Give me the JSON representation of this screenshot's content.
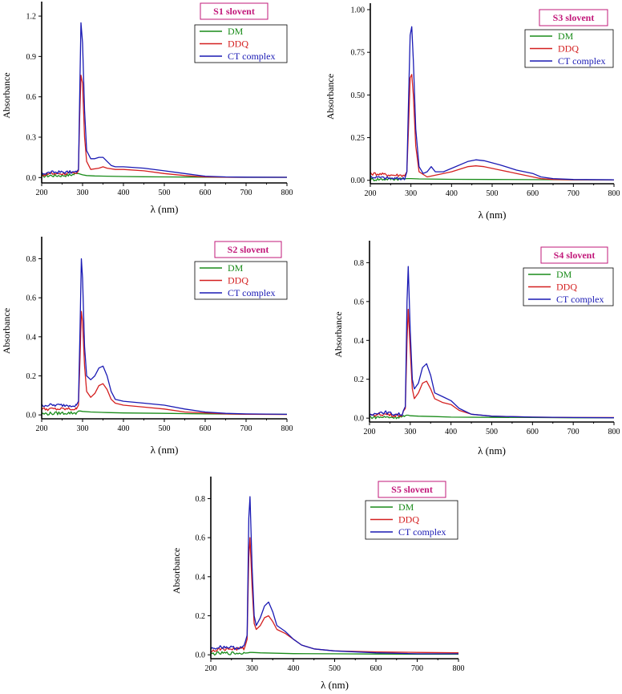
{
  "colors": {
    "DM": "#1a8c1a",
    "DDQ": "#d42020",
    "CT complex": "#1a1ab4",
    "title": "#c2187a"
  },
  "chart_data": [
    {
      "type": "line",
      "title": "S1 slovent",
      "xlabel": "λ (nm)",
      "ylabel": "Absorbance",
      "xlim": [
        200,
        800
      ],
      "ylim": [
        -0.04,
        1.26
      ],
      "xticks": [
        200,
        300,
        400,
        500,
        600,
        700,
        800
      ],
      "xtick_labels": [
        "200",
        "300",
        "400",
        "500",
        "600",
        "700",
        "800"
      ],
      "yticks": [
        0,
        0.3,
        0.6,
        0.9,
        1.2
      ],
      "ytick_labels": [
        "0.0",
        "0.3",
        "0.6",
        "0.9",
        "1.2"
      ],
      "legend": [
        "DM",
        "DDQ",
        "CT complex"
      ],
      "series": [
        {
          "name": "DM",
          "x": [
            200,
            220,
            250,
            270,
            280,
            290,
            295,
            300,
            310,
            330,
            360,
            400,
            450,
            500,
            600,
            700,
            800
          ],
          "y": [
            0.01,
            0.015,
            0.015,
            0.02,
            0.025,
            0.03,
            0.025,
            0.02,
            0.015,
            0.012,
            0.01,
            0.008,
            0.006,
            0.005,
            0.003,
            0.002,
            0.002
          ]
        },
        {
          "name": "DDQ",
          "x": [
            200,
            230,
            260,
            285,
            290,
            293,
            296,
            300,
            305,
            310,
            320,
            340,
            350,
            360,
            380,
            400,
            450,
            500,
            550,
            600,
            650,
            700,
            800
          ],
          "y": [
            0.02,
            0.03,
            0.03,
            0.03,
            0.05,
            0.45,
            0.76,
            0.7,
            0.3,
            0.12,
            0.06,
            0.07,
            0.08,
            0.07,
            0.06,
            0.06,
            0.05,
            0.03,
            0.015,
            0.005,
            0.003,
            0.002,
            0.002
          ]
        },
        {
          "name": "CT complex",
          "x": [
            200,
            230,
            260,
            285,
            290,
            293,
            296,
            300,
            305,
            310,
            320,
            330,
            340,
            350,
            360,
            370,
            380,
            400,
            450,
            500,
            550,
            600,
            650,
            700,
            800
          ],
          "y": [
            0.03,
            0.04,
            0.04,
            0.04,
            0.06,
            0.6,
            1.15,
            1.0,
            0.5,
            0.2,
            0.14,
            0.14,
            0.15,
            0.15,
            0.12,
            0.09,
            0.08,
            0.08,
            0.07,
            0.05,
            0.03,
            0.01,
            0.005,
            0.003,
            0.002
          ]
        }
      ]
    },
    {
      "type": "line",
      "title": "S3 slovent",
      "xlabel": "λ (nm)",
      "ylabel": "Absorbance",
      "xlim": [
        200,
        800
      ],
      "ylim": [
        -0.02,
        1.0
      ],
      "xticks": [
        200,
        300,
        400,
        500,
        600,
        700,
        800
      ],
      "xtick_labels": [
        "200",
        "300",
        "400",
        "500",
        "600",
        "700",
        "800"
      ],
      "yticks": [
        0,
        0.25,
        0.5,
        0.75,
        1.0
      ],
      "ytick_labels": [
        "0.00",
        "0.25",
        "0.50",
        "0.75",
        "1.00"
      ],
      "legend": [
        "DM",
        "DDQ",
        "CT complex"
      ],
      "series": [
        {
          "name": "DM",
          "x": [
            200,
            250,
            280,
            290,
            300,
            320,
            400,
            500,
            600,
            700,
            800
          ],
          "y": [
            0.005,
            0.008,
            0.01,
            0.01,
            0.01,
            0.008,
            0.006,
            0.005,
            0.004,
            0.003,
            0.003
          ]
        },
        {
          "name": "DDQ",
          "x": [
            200,
            230,
            260,
            285,
            290,
            294,
            298,
            302,
            306,
            312,
            320,
            340,
            360,
            400,
            440,
            460,
            480,
            520,
            560,
            600,
            620,
            650,
            700,
            800
          ],
          "y": [
            0.04,
            0.035,
            0.03,
            0.03,
            0.05,
            0.3,
            0.6,
            0.62,
            0.5,
            0.2,
            0.05,
            0.02,
            0.03,
            0.05,
            0.08,
            0.085,
            0.08,
            0.06,
            0.04,
            0.02,
            0.01,
            0.005,
            0.003,
            0.003
          ]
        },
        {
          "name": "CT complex",
          "x": [
            200,
            230,
            260,
            285,
            290,
            294,
            298,
            302,
            306,
            312,
            320,
            330,
            340,
            350,
            360,
            380,
            400,
            440,
            460,
            480,
            520,
            560,
            580,
            600,
            620,
            650,
            700,
            800
          ],
          "y": [
            0.02,
            0.015,
            0.01,
            0.01,
            0.05,
            0.45,
            0.85,
            0.9,
            0.7,
            0.3,
            0.08,
            0.04,
            0.05,
            0.08,
            0.05,
            0.05,
            0.07,
            0.11,
            0.12,
            0.115,
            0.09,
            0.06,
            0.05,
            0.04,
            0.02,
            0.01,
            0.005,
            0.003
          ]
        }
      ]
    },
    {
      "type": "line",
      "title": "S2 slovent",
      "xlabel": "λ (nm)",
      "ylabel": "Absorbance",
      "xlim": [
        200,
        800
      ],
      "ylim": [
        -0.02,
        0.88
      ],
      "xticks": [
        200,
        300,
        400,
        500,
        600,
        700,
        800
      ],
      "xtick_labels": [
        "200",
        "300",
        "400",
        "500",
        "600",
        "700",
        "800"
      ],
      "yticks": [
        0,
        0.2,
        0.4,
        0.6,
        0.8
      ],
      "ytick_labels": [
        "0.0",
        "0.2",
        "0.4",
        "0.6",
        "0.8"
      ],
      "legend": [
        "DM",
        "DDQ",
        "CT complex"
      ],
      "series": [
        {
          "name": "DM",
          "x": [
            200,
            230,
            260,
            285,
            290,
            295,
            300,
            320,
            360,
            400,
            500,
            600,
            700,
            800
          ],
          "y": [
            0.005,
            0.008,
            0.01,
            0.01,
            0.02,
            0.02,
            0.018,
            0.015,
            0.012,
            0.01,
            0.008,
            0.005,
            0.004,
            0.003
          ]
        },
        {
          "name": "DDQ",
          "x": [
            200,
            230,
            260,
            285,
            290,
            294,
            297,
            300,
            305,
            310,
            320,
            330,
            340,
            350,
            360,
            370,
            380,
            400,
            450,
            500,
            550,
            600,
            650,
            700,
            800
          ],
          "y": [
            0.03,
            0.03,
            0.03,
            0.03,
            0.05,
            0.3,
            0.53,
            0.48,
            0.25,
            0.12,
            0.09,
            0.11,
            0.15,
            0.16,
            0.13,
            0.08,
            0.06,
            0.05,
            0.04,
            0.03,
            0.015,
            0.01,
            0.005,
            0.003,
            0.002
          ]
        },
        {
          "name": "CT complex",
          "x": [
            200,
            230,
            260,
            285,
            290,
            294,
            297,
            300,
            305,
            310,
            320,
            330,
            340,
            350,
            360,
            370,
            380,
            400,
            450,
            500,
            550,
            600,
            650,
            700,
            800
          ],
          "y": [
            0.05,
            0.05,
            0.05,
            0.05,
            0.07,
            0.45,
            0.8,
            0.7,
            0.35,
            0.2,
            0.18,
            0.2,
            0.24,
            0.25,
            0.2,
            0.12,
            0.08,
            0.07,
            0.06,
            0.05,
            0.03,
            0.015,
            0.008,
            0.005,
            0.003
          ]
        }
      ]
    },
    {
      "type": "line",
      "title": "S4 slovent",
      "xlabel": "λ (nm)",
      "ylabel": "Absorbance",
      "xlim": [
        200,
        800
      ],
      "ylim": [
        -0.02,
        0.88
      ],
      "xticks": [
        200,
        300,
        400,
        500,
        600,
        700,
        800
      ],
      "xtick_labels": [
        "200",
        "300",
        "400",
        "500",
        "600",
        "700",
        "800"
      ],
      "yticks": [
        0,
        0.2,
        0.4,
        0.6,
        0.8
      ],
      "ytick_labels": [
        "0.0",
        "0.2",
        "0.4",
        "0.6",
        "0.8"
      ],
      "legend": [
        "DM",
        "DDQ",
        "CT complex"
      ],
      "series": [
        {
          "name": "DM",
          "x": [
            200,
            230,
            260,
            285,
            290,
            295,
            300,
            320,
            360,
            400,
            500,
            600,
            700,
            800
          ],
          "y": [
            0.005,
            0.005,
            0.005,
            0.008,
            0.015,
            0.015,
            0.012,
            0.01,
            0.008,
            0.005,
            0.004,
            0.003,
            0.002,
            0.002
          ]
        },
        {
          "name": "DDQ",
          "x": [
            200,
            220,
            240,
            260,
            280,
            288,
            292,
            295,
            300,
            305,
            310,
            320,
            330,
            340,
            350,
            360,
            380,
            400,
            420,
            450,
            500,
            600,
            700,
            800
          ],
          "y": [
            0.01,
            0.02,
            0.02,
            0.015,
            0.015,
            0.05,
            0.4,
            0.56,
            0.35,
            0.15,
            0.1,
            0.13,
            0.18,
            0.19,
            0.15,
            0.1,
            0.08,
            0.07,
            0.04,
            0.02,
            0.01,
            0.005,
            0.003,
            0.003
          ]
        },
        {
          "name": "CT complex",
          "x": [
            200,
            220,
            240,
            260,
            280,
            288,
            292,
            295,
            300,
            305,
            310,
            320,
            330,
            340,
            350,
            360,
            380,
            400,
            420,
            450,
            500,
            600,
            700,
            800
          ],
          "y": [
            0.01,
            0.03,
            0.03,
            0.02,
            0.02,
            0.06,
            0.6,
            0.78,
            0.45,
            0.2,
            0.15,
            0.18,
            0.26,
            0.28,
            0.22,
            0.13,
            0.11,
            0.09,
            0.05,
            0.02,
            0.01,
            0.005,
            0.003,
            0.002
          ]
        }
      ]
    },
    {
      "type": "line",
      "title": "S5 slovent",
      "xlabel": "λ (nm)",
      "ylabel": "Absorbance",
      "xlim": [
        200,
        800
      ],
      "ylim": [
        -0.02,
        0.88
      ],
      "xticks": [
        200,
        300,
        400,
        500,
        600,
        700,
        800
      ],
      "xtick_labels": [
        "200",
        "300",
        "400",
        "500",
        "600",
        "700",
        "800"
      ],
      "yticks": [
        0,
        0.2,
        0.4,
        0.6,
        0.8
      ],
      "ytick_labels": [
        "0.0",
        "0.2",
        "0.4",
        "0.6",
        "0.8"
      ],
      "legend": [
        "DM",
        "DDQ",
        "CT complex"
      ],
      "series": [
        {
          "name": "DM",
          "x": [
            200,
            230,
            260,
            280,
            290,
            295,
            300,
            320,
            360,
            400,
            500,
            600,
            700,
            800
          ],
          "y": [
            0.005,
            0.008,
            0.008,
            0.008,
            0.01,
            0.012,
            0.012,
            0.01,
            0.008,
            0.006,
            0.005,
            0.004,
            0.003,
            0.003
          ]
        },
        {
          "name": "DDQ",
          "x": [
            200,
            220,
            240,
            260,
            280,
            288,
            292,
            295,
            300,
            305,
            310,
            320,
            330,
            340,
            350,
            360,
            380,
            400,
            420,
            450,
            500,
            600,
            700,
            800
          ],
          "y": [
            0.02,
            0.03,
            0.03,
            0.03,
            0.03,
            0.08,
            0.5,
            0.6,
            0.35,
            0.16,
            0.13,
            0.15,
            0.19,
            0.2,
            0.17,
            0.13,
            0.11,
            0.08,
            0.05,
            0.03,
            0.02,
            0.015,
            0.012,
            0.01
          ]
        },
        {
          "name": "CT complex",
          "x": [
            200,
            220,
            240,
            260,
            280,
            288,
            292,
            295,
            300,
            305,
            310,
            320,
            330,
            340,
            350,
            360,
            380,
            400,
            420,
            450,
            500,
            600,
            700,
            800
          ],
          "y": [
            0.03,
            0.04,
            0.04,
            0.035,
            0.04,
            0.1,
            0.7,
            0.81,
            0.45,
            0.2,
            0.15,
            0.19,
            0.25,
            0.27,
            0.22,
            0.15,
            0.12,
            0.08,
            0.05,
            0.03,
            0.02,
            0.01,
            0.005,
            0.005
          ]
        }
      ]
    }
  ]
}
